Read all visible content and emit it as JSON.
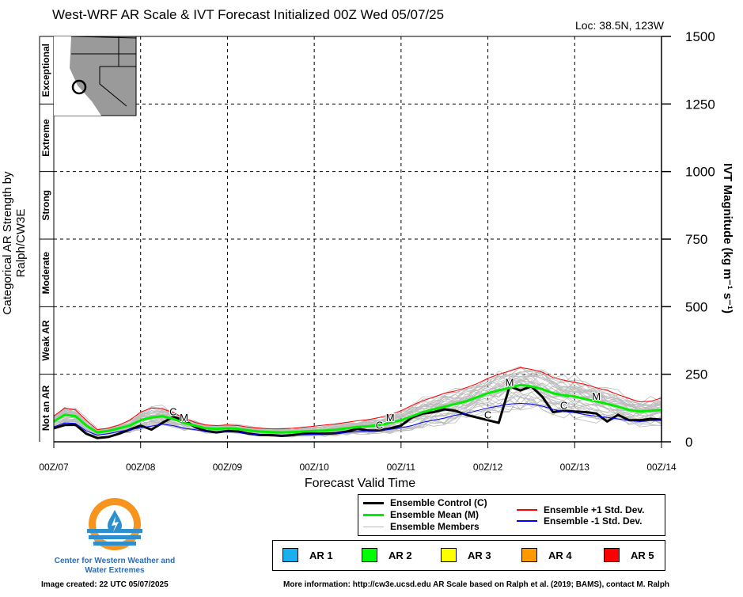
{
  "header": {
    "title": "West-WRF AR Scale & IVT Forecast Initialized 00Z Wed 05/07/25",
    "location": "Loc: 38.5N, 123W"
  },
  "axes": {
    "left_title": "Categorical AR Strength by Ralph/CW3E",
    "right_title": "IVT Magnitude (kg m⁻¹ s⁻¹)",
    "x_title": "Forecast Valid Time"
  },
  "categories": [
    "Not an AR",
    "Weak AR",
    "Moderate",
    "Strong",
    "Extreme",
    "Exceptional"
  ],
  "legend": {
    "control": "Ensemble Control (C)",
    "mean": "Ensemble Mean (M)",
    "members": "Ensemble Members",
    "plus_sd": "Ensemble +1 Std. Dev.",
    "minus_sd": "Ensemble -1 Std. Dev."
  },
  "ar_scale": [
    {
      "label": "AR 1",
      "color": "#1ab0f0"
    },
    {
      "label": "AR 2",
      "color": "#00ff00"
    },
    {
      "label": "AR 3",
      "color": "#ffff00"
    },
    {
      "label": "AR 4",
      "color": "#ff9900"
    },
    {
      "label": "AR 5",
      "color": "#ff0000"
    }
  ],
  "footer": {
    "org": "Center for Western Weather and Water Extremes",
    "created": "Image created: 22 UTC 05/07/2025",
    "more_info": "More information: http://cw3e.ucsd.edu  AR Scale based on Ralph et al. (2019; BAMS), contact M. Ralph"
  },
  "chart_data": {
    "type": "line",
    "title": "West-WRF AR Scale & IVT Forecast Initialized 00Z Wed 05/07/25",
    "xlabel": "Forecast Valid Time",
    "ylabel": "IVT Magnitude (kg m⁻¹ s⁻¹)",
    "x_ticks": [
      "00Z/07",
      "00Z/08",
      "00Z/09",
      "00Z/10",
      "00Z/11",
      "00Z/12",
      "00Z/13",
      "00Z/14"
    ],
    "x_unit": "hours from 00Z/07",
    "xlim": [
      0,
      168
    ],
    "ylim": [
      0,
      1500
    ],
    "y_ticks": [
      0,
      250,
      500,
      750,
      1000,
      1250,
      1500
    ],
    "grid": true,
    "series": [
      {
        "name": "Ensemble Control (C)",
        "color": "#000000",
        "x": [
          0,
          3,
          6,
          9,
          12,
          15,
          18,
          21,
          24,
          27,
          30,
          33,
          36,
          39,
          42,
          45,
          48,
          51,
          54,
          57,
          60,
          63,
          66,
          69,
          72,
          75,
          78,
          81,
          84,
          87,
          90,
          93,
          96,
          99,
          102,
          105,
          108,
          111,
          114,
          117,
          120,
          123,
          126,
          129,
          132,
          135,
          138,
          141,
          144,
          147,
          150,
          153,
          156,
          159,
          162,
          165,
          168
        ],
        "values": [
          50,
          62,
          63,
          30,
          14,
          18,
          30,
          45,
          60,
          45,
          70,
          92,
          80,
          55,
          40,
          35,
          40,
          38,
          30,
          25,
          25,
          22,
          25,
          30,
          30,
          30,
          32,
          38,
          48,
          42,
          42,
          50,
          60,
          90,
          105,
          110,
          120,
          115,
          100,
          90,
          80,
          70,
          205,
          190,
          205,
          168,
          110,
          115,
          112,
          110,
          105,
          75,
          100,
          80,
          80,
          85,
          82
        ],
        "label_x": 21.5,
        "label_x2": 90,
        "label_x3": 112,
        "label_x4": 138
      },
      {
        "name": "Ensemble Mean (M)",
        "color": "#00ee00",
        "x": [
          0,
          3,
          6,
          9,
          12,
          15,
          18,
          21,
          24,
          27,
          30,
          33,
          36,
          39,
          42,
          45,
          48,
          51,
          54,
          57,
          60,
          63,
          66,
          69,
          72,
          75,
          78,
          81,
          84,
          87,
          90,
          93,
          96,
          99,
          102,
          105,
          108,
          111,
          114,
          117,
          120,
          123,
          126,
          129,
          132,
          135,
          138,
          141,
          144,
          147,
          150,
          153,
          156,
          159,
          162,
          165,
          168
        ],
        "values": [
          75,
          100,
          95,
          60,
          35,
          40,
          50,
          60,
          80,
          90,
          95,
          85,
          70,
          60,
          50,
          48,
          50,
          48,
          42,
          38,
          36,
          35,
          36,
          38,
          40,
          42,
          45,
          50,
          55,
          58,
          62,
          70,
          80,
          95,
          110,
          120,
          130,
          140,
          150,
          165,
          180,
          190,
          200,
          210,
          205,
          195,
          180,
          172,
          168,
          158,
          150,
          140,
          130,
          118,
          112,
          115,
          118
        ]
      },
      {
        "name": "Ensemble +1 Std. Dev.",
        "color": "#ff0000",
        "x": [
          0,
          3,
          6,
          9,
          12,
          15,
          18,
          21,
          24,
          27,
          30,
          33,
          36,
          39,
          42,
          45,
          48,
          51,
          54,
          57,
          60,
          63,
          66,
          69,
          72,
          75,
          78,
          81,
          84,
          87,
          90,
          93,
          96,
          99,
          102,
          105,
          108,
          111,
          114,
          117,
          120,
          123,
          126,
          129,
          132,
          135,
          138,
          141,
          144,
          147,
          150,
          153,
          156,
          159,
          162,
          165,
          168
        ],
        "values": [
          95,
          125,
          118,
          80,
          45,
          50,
          62,
          80,
          110,
          125,
          122,
          108,
          88,
          72,
          62,
          60,
          62,
          60,
          54,
          50,
          48,
          48,
          50,
          54,
          58,
          62,
          66,
          72,
          78,
          82,
          90,
          100,
          115,
          135,
          152,
          165,
          180,
          188,
          200,
          215,
          235,
          250,
          262,
          275,
          268,
          258,
          238,
          228,
          220,
          212,
          200,
          190,
          175,
          160,
          148,
          150,
          162
        ]
      },
      {
        "name": "Ensemble -1 Std. Dev.",
        "color": "#0000ff",
        "x": [
          0,
          3,
          6,
          9,
          12,
          15,
          18,
          21,
          24,
          27,
          30,
          33,
          36,
          39,
          42,
          45,
          48,
          51,
          54,
          57,
          60,
          63,
          66,
          69,
          72,
          75,
          78,
          81,
          84,
          87,
          90,
          93,
          96,
          99,
          102,
          105,
          108,
          111,
          114,
          117,
          120,
          123,
          126,
          129,
          132,
          135,
          138,
          141,
          144,
          147,
          150,
          153,
          156,
          159,
          162,
          165,
          168
        ],
        "values": [
          55,
          70,
          68,
          40,
          25,
          30,
          38,
          45,
          52,
          58,
          65,
          60,
          50,
          45,
          38,
          36,
          38,
          36,
          30,
          26,
          25,
          24,
          25,
          26,
          28,
          30,
          32,
          35,
          38,
          40,
          42,
          46,
          52,
          60,
          72,
          80,
          88,
          98,
          105,
          115,
          125,
          132,
          140,
          142,
          140,
          132,
          120,
          112,
          108,
          100,
          95,
          90,
          85,
          78,
          75,
          78,
          80
        ]
      }
    ],
    "members_note": "Ensemble Members",
    "location_marker": "38.5N, 123W"
  }
}
